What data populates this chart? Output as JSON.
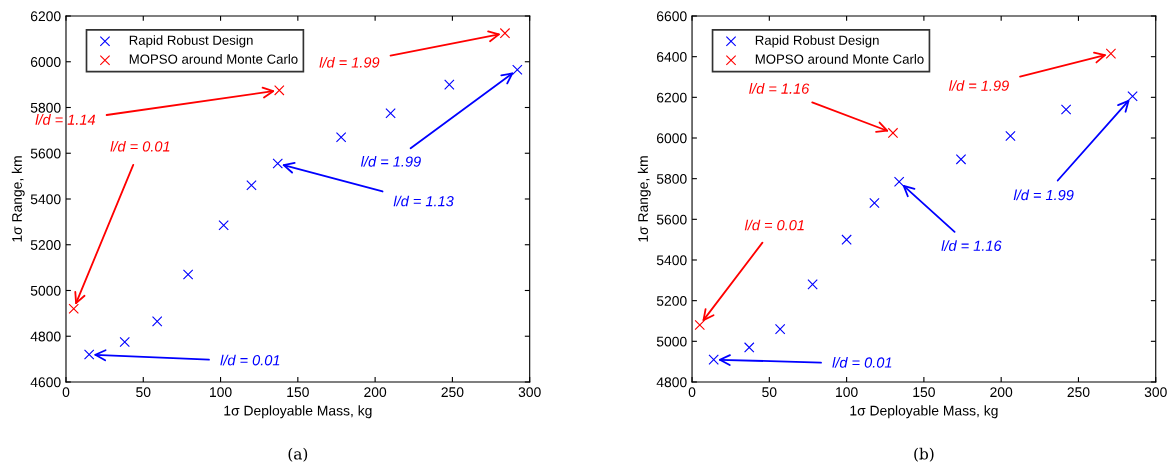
{
  "chart_data": [
    {
      "type": "scatter",
      "xlabel": "1σ Deployable Mass, kg",
      "ylabel": "1σ Range, km",
      "xlim": [
        0,
        300
      ],
      "xticks": [
        0,
        50,
        100,
        150,
        200,
        250,
        300
      ],
      "ylim": [
        4600,
        6200
      ],
      "yticks": [
        4600,
        4800,
        5000,
        5200,
        5400,
        5600,
        5800,
        6000,
        6200
      ],
      "grid": false,
      "legend": "top left",
      "marker": "cross",
      "series": [
        {
          "name": "Rapid Robust Design",
          "color": "#0000ff",
          "x": [
            15,
            38,
            59,
            79,
            102,
            120,
            137,
            178,
            210,
            248,
            292
          ],
          "values": [
            4720,
            4775,
            4865,
            5070,
            5285,
            5460,
            5555,
            5670,
            5775,
            5900,
            5965
          ]
        },
        {
          "name": "MOPSO around Monte Carlo",
          "color": "#ff0000",
          "x": [
            5,
            138,
            284
          ],
          "values": [
            4920,
            5875,
            6125
          ]
        }
      ],
      "annotations": [
        {
          "text": "l/d = 0.01",
          "x": 5,
          "y": 4920
        },
        {
          "text": "l/d = 1.14",
          "x": 138,
          "y": 5875
        },
        {
          "text": "l/d = 1.99",
          "x": 284,
          "y": 6125
        },
        {
          "text": "l/d = 0.01",
          "x": 15,
          "y": 4720
        },
        {
          "text": "l/d = 1.13",
          "x": 137,
          "y": 5555
        },
        {
          "text": "l/d = 1.99",
          "x": 292,
          "y": 5965
        },
        "(a)"
      ]
    },
    {
      "type": "scatter",
      "xlabel": "1σ Deployable Mass, kg",
      "ylabel": "1σ Range, km",
      "xlim": [
        0,
        300
      ],
      "xticks": [
        0,
        50,
        100,
        150,
        200,
        250,
        300
      ],
      "ylim": [
        4800,
        6600
      ],
      "yticks": [
        4800,
        5000,
        5200,
        5400,
        5600,
        5800,
        6000,
        6200,
        6400,
        6600
      ],
      "grid": false,
      "legend": "top left",
      "marker": "cross",
      "series": [
        {
          "name": "Rapid Robust Design",
          "color": "#0000ff",
          "x": [
            14,
            37,
            57,
            78,
            100,
            118,
            134,
            174,
            206,
            242,
            285
          ],
          "values": [
            4910,
            4970,
            5060,
            5280,
            5500,
            5680,
            5785,
            5895,
            6010,
            6140,
            6205
          ]
        },
        {
          "name": "MOPSO around Monte Carlo",
          "color": "#ff0000",
          "x": [
            5,
            130,
            271
          ],
          "values": [
            5080,
            6025,
            6415
          ]
        }
      ],
      "annotations": [
        {
          "text": "l/d = 0.01",
          "x": 5,
          "y": 5080
        },
        {
          "text": "l/d = 1.16",
          "x": 130,
          "y": 6025
        },
        {
          "text": "l/d = 1.99",
          "x": 271,
          "y": 6415
        },
        {
          "text": "l/d = 0.01",
          "x": 14,
          "y": 4910
        },
        {
          "text": "l/d = 1.16",
          "x": 134,
          "y": 5785
        },
        {
          "text": "l/d = 1.99",
          "x": 285,
          "y": 6205
        },
        "(b)"
      ]
    }
  ]
}
